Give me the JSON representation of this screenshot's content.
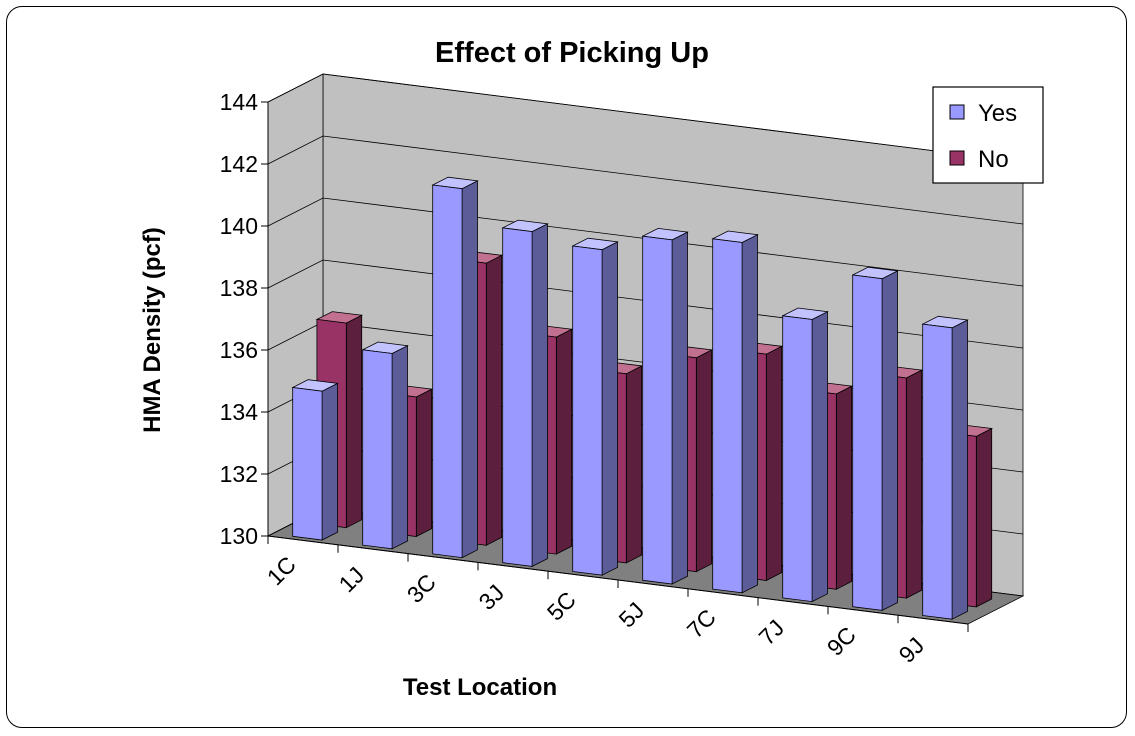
{
  "chart_data": {
    "type": "bar",
    "title": "Effect of Picking Up",
    "xlabel": "Test Location",
    "ylabel": "HMA Density (pcf)",
    "categories": [
      "1C",
      "1J",
      "3C",
      "3J",
      "5C",
      "5J",
      "7C",
      "7J",
      "9C",
      "9J"
    ],
    "series": [
      {
        "name": "Yes",
        "values": [
          134.8,
          136.3,
          141.9,
          140.8,
          140.5,
          141.1,
          141.3,
          139.1,
          140.7,
          139.4
        ]
      },
      {
        "name": "No",
        "values": [
          136.6,
          134.5,
          139.1,
          137.0,
          136.1,
          136.9,
          137.3,
          136.3,
          137.1,
          135.5
        ]
      }
    ],
    "yticks": [
      130,
      132,
      134,
      136,
      138,
      140,
      142,
      144
    ],
    "ylim": [
      130,
      144
    ],
    "grid": true,
    "legend_position": "top-right",
    "colors": {
      "Yes": {
        "front": "#9999ff",
        "side": "#5c5c99",
        "top": "#c2c2ff"
      },
      "No": {
        "front": "#993366",
        "side": "#5c1f3d",
        "top": "#c2708f"
      },
      "back_wall": "#c0c0c0",
      "floor": "#808080"
    }
  }
}
